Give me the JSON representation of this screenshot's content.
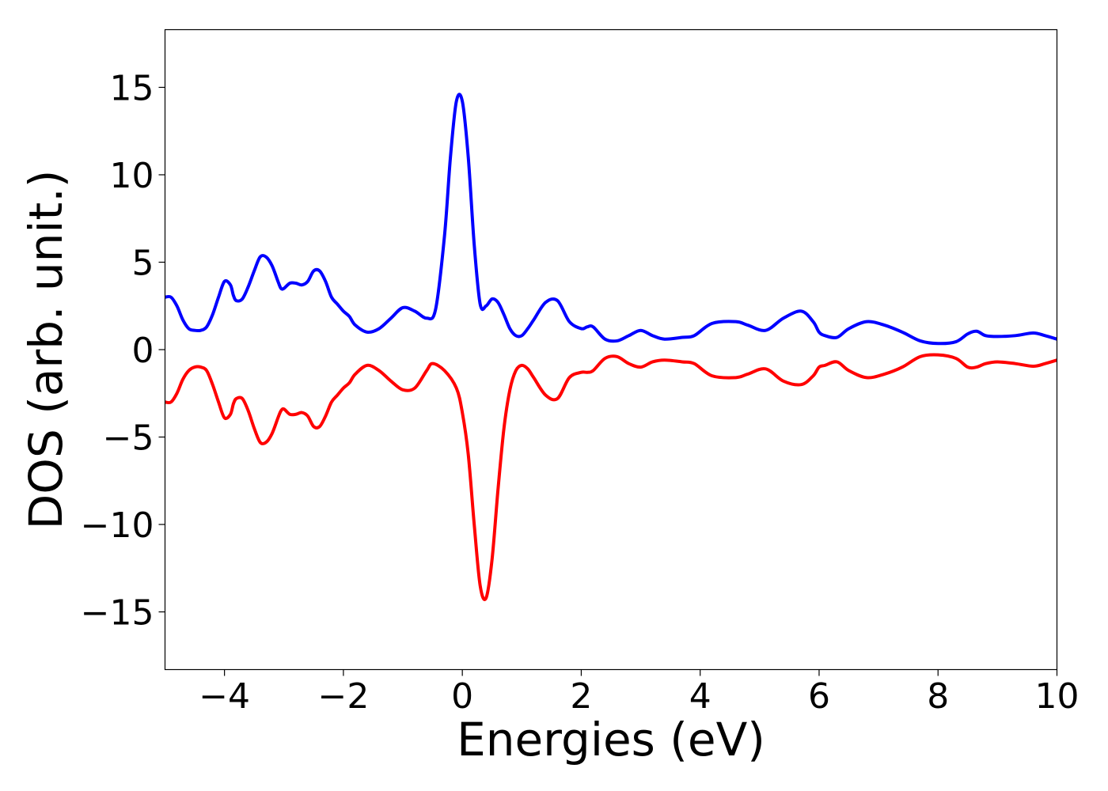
{
  "chart_data": {
    "type": "line",
    "xlabel": "Energies (eV)",
    "ylabel": "DOS (arb. unit.)",
    "xlim": [
      -5,
      10
    ],
    "ylim": [
      -18.3,
      18.3
    ],
    "grid": false,
    "legend": "none",
    "xticks": [
      -4,
      -2,
      0,
      2,
      4,
      6,
      8,
      10
    ],
    "xtick_labels": [
      "−4",
      "−2",
      "0",
      "2",
      "4",
      "6",
      "8",
      "10"
    ],
    "yticks": [
      15,
      10,
      5,
      0,
      -5,
      -10,
      -15
    ],
    "ytick_labels": [
      "15",
      "10",
      "5",
      "0",
      "−5",
      "−10",
      "−15"
    ],
    "series": [
      {
        "color": "#0000ff",
        "x": [
          -5.0,
          -4.9,
          -4.8,
          -4.7,
          -4.6,
          -4.5,
          -4.4,
          -4.3,
          -4.2,
          -4.1,
          -4.0,
          -3.9,
          -3.85,
          -3.8,
          -3.7,
          -3.6,
          -3.5,
          -3.4,
          -3.3,
          -3.2,
          -3.1,
          -3.05,
          -3.0,
          -2.9,
          -2.8,
          -2.7,
          -2.6,
          -2.5,
          -2.4,
          -2.3,
          -2.2,
          -2.1,
          -2.0,
          -1.9,
          -1.8,
          -1.6,
          -1.4,
          -1.2,
          -1.0,
          -0.8,
          -0.6,
          -0.45,
          -0.3,
          -0.2,
          -0.1,
          0.0,
          0.1,
          0.2,
          0.3,
          0.4,
          0.5,
          0.6,
          0.7,
          0.8,
          0.9,
          1.0,
          1.1,
          1.2,
          1.4,
          1.6,
          1.8,
          2.0,
          2.1,
          2.2,
          2.4,
          2.6,
          2.8,
          3.0,
          3.2,
          3.4,
          3.7,
          3.9,
          4.2,
          4.6,
          4.8,
          5.1,
          5.4,
          5.7,
          5.9,
          6.0,
          6.1,
          6.3,
          6.5,
          6.8,
          7.1,
          7.4,
          7.7,
          8.0,
          8.3,
          8.5,
          8.65,
          8.8,
          9.0,
          9.3,
          9.6,
          9.8,
          10.0
        ],
        "y": [
          3.0,
          3.0,
          2.5,
          1.7,
          1.2,
          1.1,
          1.1,
          1.3,
          2.0,
          3.0,
          3.9,
          3.7,
          3.1,
          2.8,
          2.9,
          3.6,
          4.5,
          5.3,
          5.3,
          4.8,
          3.9,
          3.5,
          3.5,
          3.8,
          3.8,
          3.7,
          3.9,
          4.5,
          4.5,
          3.9,
          3.0,
          2.6,
          2.2,
          1.9,
          1.4,
          1.0,
          1.2,
          1.8,
          2.4,
          2.2,
          1.8,
          2.3,
          6.5,
          11.0,
          14.2,
          14.2,
          11.0,
          6.0,
          2.6,
          2.5,
          2.9,
          2.7,
          2.0,
          1.2,
          0.8,
          0.8,
          1.2,
          1.7,
          2.7,
          2.8,
          1.6,
          1.2,
          1.3,
          1.3,
          0.6,
          0.5,
          0.8,
          1.1,
          0.8,
          0.6,
          0.7,
          0.8,
          1.5,
          1.6,
          1.4,
          1.1,
          1.8,
          2.2,
          1.6,
          1.0,
          0.8,
          0.7,
          1.2,
          1.6,
          1.4,
          1.0,
          0.5,
          0.35,
          0.45,
          0.9,
          1.05,
          0.8,
          0.75,
          0.8,
          0.95,
          0.8,
          0.6
        ]
      },
      {
        "color": "#ff0000",
        "x": [
          -5.0,
          -4.9,
          -4.8,
          -4.7,
          -4.6,
          -4.5,
          -4.4,
          -4.3,
          -4.2,
          -4.1,
          -4.0,
          -3.9,
          -3.85,
          -3.8,
          -3.7,
          -3.6,
          -3.5,
          -3.4,
          -3.3,
          -3.2,
          -3.1,
          -3.05,
          -3.0,
          -2.9,
          -2.8,
          -2.7,
          -2.6,
          -2.5,
          -2.4,
          -2.3,
          -2.2,
          -2.1,
          -2.0,
          -1.9,
          -1.8,
          -1.6,
          -1.4,
          -1.2,
          -1.0,
          -0.8,
          -0.6,
          -0.5,
          -0.3,
          -0.1,
          0.0,
          0.1,
          0.2,
          0.3,
          0.4,
          0.5,
          0.6,
          0.7,
          0.8,
          0.9,
          1.0,
          1.1,
          1.2,
          1.4,
          1.6,
          1.8,
          2.0,
          2.1,
          2.2,
          2.4,
          2.6,
          2.8,
          3.0,
          3.2,
          3.4,
          3.7,
          3.9,
          4.2,
          4.6,
          4.8,
          5.1,
          5.4,
          5.7,
          5.9,
          6.0,
          6.1,
          6.3,
          6.5,
          6.8,
          7.1,
          7.4,
          7.7,
          8.0,
          8.3,
          8.5,
          8.65,
          8.8,
          9.0,
          9.3,
          9.6,
          9.8,
          10.0
        ],
        "y": [
          -3.0,
          -3.0,
          -2.5,
          -1.7,
          -1.2,
          -1.0,
          -1.0,
          -1.2,
          -2.0,
          -3.0,
          -3.9,
          -3.7,
          -3.1,
          -2.8,
          -2.8,
          -3.5,
          -4.5,
          -5.3,
          -5.3,
          -4.8,
          -3.9,
          -3.5,
          -3.4,
          -3.7,
          -3.7,
          -3.6,
          -3.8,
          -4.4,
          -4.4,
          -3.8,
          -3.0,
          -2.6,
          -2.2,
          -1.9,
          -1.4,
          -0.9,
          -1.2,
          -1.8,
          -2.3,
          -2.2,
          -1.2,
          -0.8,
          -1.2,
          -2.2,
          -3.6,
          -6.0,
          -10.0,
          -13.5,
          -14.2,
          -12.0,
          -8.0,
          -4.5,
          -2.3,
          -1.2,
          -0.9,
          -1.1,
          -1.6,
          -2.6,
          -2.8,
          -1.6,
          -1.3,
          -1.3,
          -1.2,
          -0.5,
          -0.4,
          -0.8,
          -1.0,
          -0.7,
          -0.6,
          -0.7,
          -0.8,
          -1.5,
          -1.6,
          -1.4,
          -1.1,
          -1.8,
          -2.0,
          -1.5,
          -1.0,
          -0.9,
          -0.7,
          -1.2,
          -1.6,
          -1.4,
          -1.0,
          -0.4,
          -0.3,
          -0.5,
          -1.0,
          -1.0,
          -0.8,
          -0.7,
          -0.8,
          -0.95,
          -0.8,
          -0.6
        ]
      }
    ]
  }
}
